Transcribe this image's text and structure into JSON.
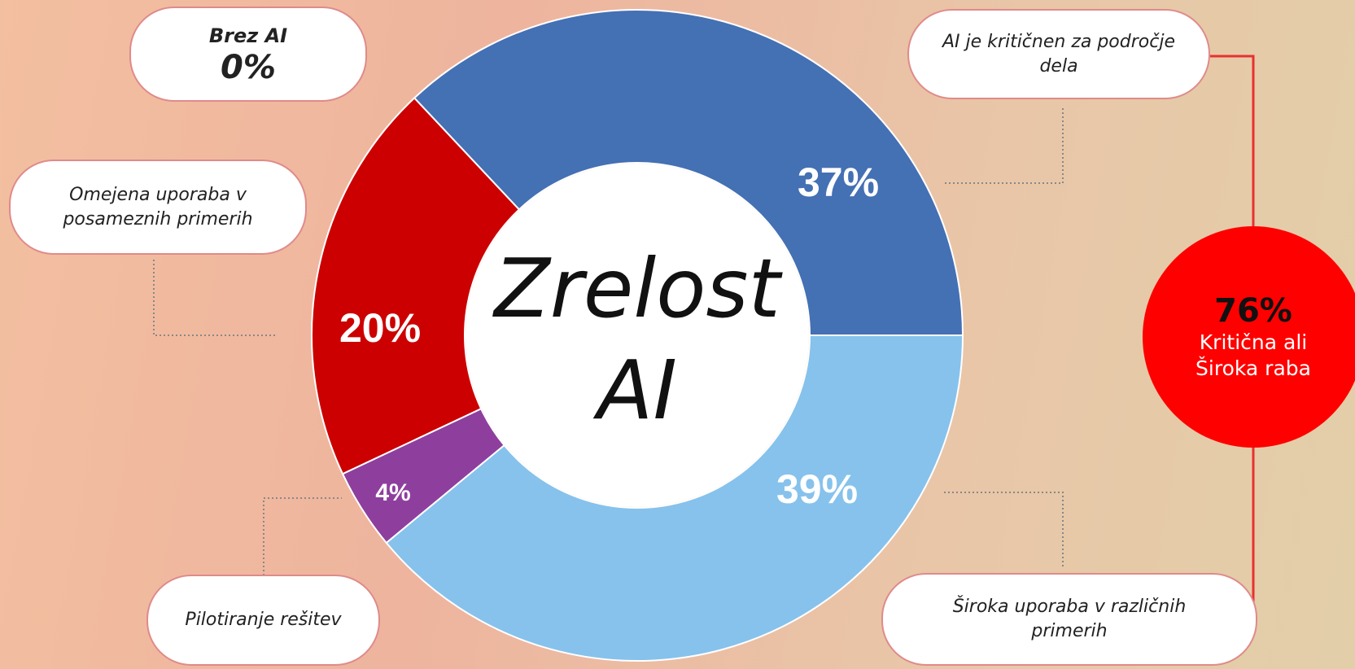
{
  "chart_data": {
    "type": "donut",
    "title": "Zrelost AI",
    "categories": [
      "AI je kritičnen za področje dela",
      "Omejena uporaba v posameznih primerih",
      "Pilotiranje rešitev",
      "Široka uporaba v različnih primerih",
      "Brez AI"
    ],
    "values": [
      37,
      20,
      4,
      39,
      0
    ],
    "value_labels": [
      "37%",
      "20%",
      "4%",
      "39%",
      "0%"
    ],
    "colors": [
      "#4470b4",
      "#cc0000",
      "#8e3f9e",
      "#86c2ec",
      null
    ],
    "annotation": {
      "value": 76,
      "label": "76%",
      "text": "Kritična ali Široka raba"
    }
  }
}
